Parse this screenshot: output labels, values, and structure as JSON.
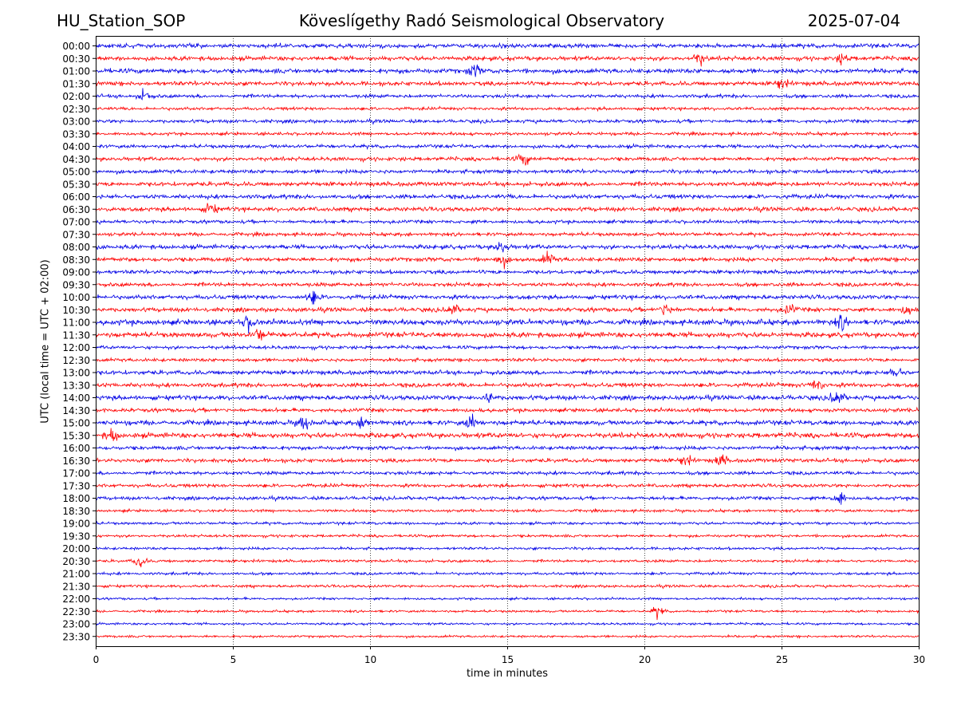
{
  "header": {
    "station": "HU_Station_SOP",
    "observatory": "Köveslígethy Radó Seismological Observatory",
    "date": "2025-07-04"
  },
  "chart_data": {
    "type": "line",
    "title": "Köveslígethy Radó Seismological Observatory",
    "xlabel": "time in minutes",
    "ylabel": "UTC (local time = UTC + 02:00)",
    "xlim": [
      0,
      30
    ],
    "x_ticks": [
      0,
      5,
      10,
      15,
      20,
      25,
      30
    ],
    "grid": "vertical dotted lines at each x tick",
    "rows": [
      "00:00",
      "00:30",
      "01:00",
      "01:30",
      "02:00",
      "02:30",
      "03:00",
      "03:30",
      "04:00",
      "04:30",
      "05:00",
      "05:30",
      "06:00",
      "06:30",
      "07:00",
      "07:30",
      "08:00",
      "08:30",
      "09:00",
      "09:30",
      "10:00",
      "10:30",
      "11:00",
      "11:30",
      "12:00",
      "12:30",
      "13:00",
      "13:30",
      "14:00",
      "14:30",
      "15:00",
      "15:30",
      "16:00",
      "16:30",
      "17:00",
      "17:30",
      "18:00",
      "18:30",
      "19:00",
      "19:30",
      "20:00",
      "20:30",
      "21:00",
      "21:30",
      "22:00",
      "22:30",
      "23:00",
      "23:30"
    ],
    "row_amplitude": [
      0.55,
      0.55,
      0.6,
      0.55,
      0.45,
      0.4,
      0.45,
      0.4,
      0.45,
      0.5,
      0.5,
      0.55,
      0.55,
      0.55,
      0.45,
      0.45,
      0.55,
      0.55,
      0.5,
      0.5,
      0.55,
      0.55,
      0.7,
      0.65,
      0.45,
      0.45,
      0.55,
      0.55,
      0.6,
      0.5,
      0.6,
      0.65,
      0.5,
      0.5,
      0.45,
      0.45,
      0.45,
      0.35,
      0.35,
      0.35,
      0.35,
      0.35,
      0.35,
      0.35,
      0.3,
      0.3,
      0.3,
      0.3
    ],
    "events": [
      {
        "row": "00:30",
        "minute": 22.0,
        "amp": 0.9
      },
      {
        "row": "00:30",
        "minute": 27.2,
        "amp": 0.8
      },
      {
        "row": "01:00",
        "minute": 13.8,
        "amp": 1.0
      },
      {
        "row": "01:30",
        "minute": 25.0,
        "amp": 0.8
      },
      {
        "row": "02:00",
        "minute": 1.8,
        "amp": 0.9
      },
      {
        "row": "04:30",
        "minute": 15.6,
        "amp": 1.0
      },
      {
        "row": "06:30",
        "minute": 4.2,
        "amp": 0.8
      },
      {
        "row": "08:00",
        "minute": 14.8,
        "amp": 1.0
      },
      {
        "row": "08:30",
        "minute": 14.8,
        "amp": 0.9
      },
      {
        "row": "08:30",
        "minute": 16.5,
        "amp": 0.9
      },
      {
        "row": "10:00",
        "minute": 7.9,
        "amp": 1.0
      },
      {
        "row": "10:30",
        "minute": 13.0,
        "amp": 0.8
      },
      {
        "row": "10:30",
        "minute": 20.8,
        "amp": 1.0
      },
      {
        "row": "10:30",
        "minute": 25.3,
        "amp": 0.8
      },
      {
        "row": "10:30",
        "minute": 29.6,
        "amp": 0.8
      },
      {
        "row": "11:00",
        "minute": 5.6,
        "amp": 1.0
      },
      {
        "row": "11:00",
        "minute": 27.2,
        "amp": 1.0
      },
      {
        "row": "11:30",
        "minute": 6.0,
        "amp": 1.0
      },
      {
        "row": "13:00",
        "minute": 29.2,
        "amp": 1.0
      },
      {
        "row": "13:30",
        "minute": 26.3,
        "amp": 1.0
      },
      {
        "row": "14:00",
        "minute": 27.0,
        "amp": 1.2
      },
      {
        "row": "14:00",
        "minute": 14.3,
        "amp": 0.9
      },
      {
        "row": "15:00",
        "minute": 7.6,
        "amp": 1.1
      },
      {
        "row": "15:00",
        "minute": 9.8,
        "amp": 1.0
      },
      {
        "row": "15:00",
        "minute": 13.7,
        "amp": 1.1
      },
      {
        "row": "15:30",
        "minute": 0.6,
        "amp": 1.0
      },
      {
        "row": "16:30",
        "minute": 22.8,
        "amp": 0.9
      },
      {
        "row": "16:30",
        "minute": 21.5,
        "amp": 0.8
      },
      {
        "row": "18:00",
        "minute": 27.1,
        "amp": 1.2
      },
      {
        "row": "20:30",
        "minute": 1.6,
        "amp": 0.9
      },
      {
        "row": "22:30",
        "minute": 20.5,
        "amp": 0.9
      }
    ],
    "series": [
      {
        "color": "#0000e6",
        "rows": "even (on the hour)"
      },
      {
        "color": "#ff0000",
        "rows": "odd (half past)"
      }
    ]
  },
  "colors": {
    "trace_blue": "#0000e6",
    "trace_red": "#ff0000",
    "axis": "#000000",
    "grid": "#000000"
  }
}
